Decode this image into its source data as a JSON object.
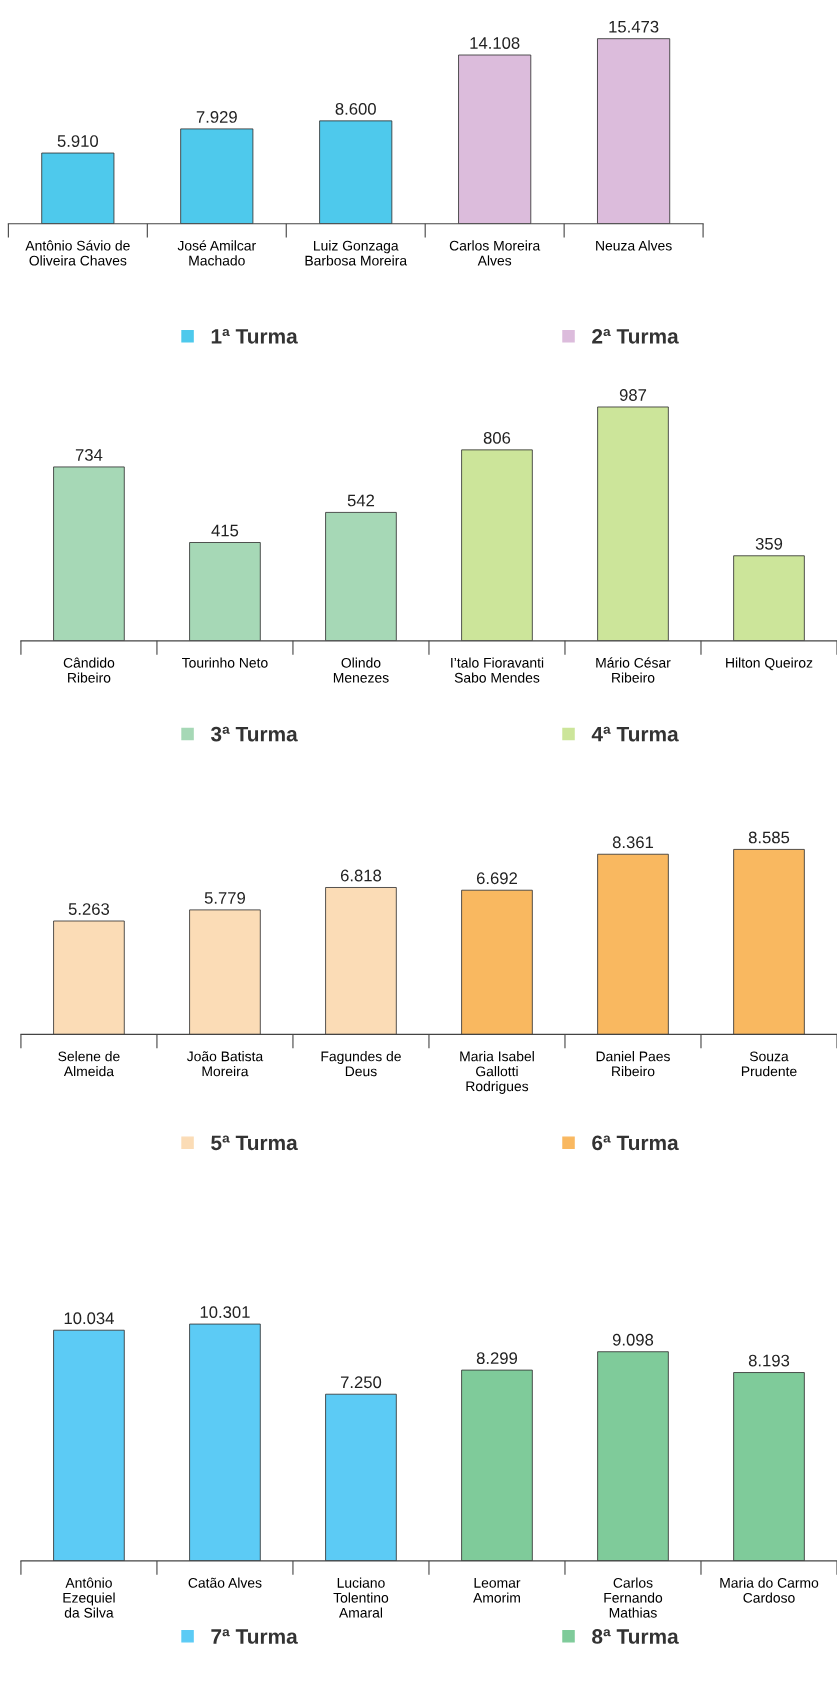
{
  "chart_data": [
    {
      "type": "bar",
      "categories": [
        "Antônio Sávio de\nOliveira Chaves",
        "José Amilcar\nMachado",
        "Luiz Gonzaga\nBarbosa Moreira",
        "Carlos Moreira\nAlves",
        "Neuza Alves"
      ],
      "legend": "bottom",
      "series": [
        {
          "name": "1ª Turma",
          "color": "#4ec9ec",
          "values": [
            5910,
            7929,
            8600,
            null,
            null
          ],
          "value_labels": [
            "5.910",
            "7.929",
            "8.600",
            null,
            null
          ]
        },
        {
          "name": "2ª Turma",
          "color": "#dcbcdc",
          "values": [
            null,
            null,
            null,
            14108,
            15473
          ],
          "value_labels": [
            null,
            null,
            null,
            "14.108",
            "15.473"
          ]
        }
      ]
    },
    {
      "type": "bar",
      "categories": [
        "Cândido\nRibeiro",
        "Tourinho Neto",
        "Olindo\nMenezes",
        "I’talo Fioravanti\nSabo Mendes",
        "Mário César\nRibeiro",
        "Hilton Queiroz"
      ],
      "legend": "bottom",
      "series": [
        {
          "name": "3ª Turma",
          "color": "#a6d8b6",
          "values": [
            734,
            415,
            542,
            null,
            null,
            null
          ],
          "value_labels": [
            "734",
            "415",
            "542",
            null,
            null,
            null
          ]
        },
        {
          "name": "4ª Turma",
          "color": "#cce59a",
          "values": [
            null,
            null,
            null,
            806,
            987,
            359
          ],
          "value_labels": [
            null,
            null,
            null,
            "806",
            "987",
            "359"
          ]
        }
      ]
    },
    {
      "type": "bar",
      "categories": [
        "Selene de\nAlmeida",
        "João Batista\nMoreira",
        "Fagundes de\nDeus",
        "Maria Isabel\nGallotti\nRodrigues",
        "Daniel Paes\nRibeiro",
        "Souza\nPrudente"
      ],
      "legend": "bottom",
      "series": [
        {
          "name": "5ª Turma",
          "color": "#fbdcb6",
          "values": [
            5263,
            5779,
            6818,
            null,
            null,
            null
          ],
          "value_labels": [
            "5.263",
            "5.779",
            "6.818",
            null,
            null,
            null
          ]
        },
        {
          "name": "6ª Turma",
          "color": "#f9b860",
          "values": [
            null,
            null,
            null,
            6692,
            8361,
            8585
          ],
          "value_labels": [
            null,
            null,
            null,
            "6.692",
            "8.361",
            "8.585"
          ]
        }
      ]
    },
    {
      "type": "bar",
      "categories": [
        "Antônio\nEzequiel\nda Silva",
        "Catão Alves",
        "Luciano\nTolentino\nAmaral",
        "Leomar\nAmorim",
        "Carlos\nFernando\nMathias",
        "Maria do Carmo\nCardoso"
      ],
      "legend": "bottom",
      "series": [
        {
          "name": "7ª Turma",
          "color": "#5ccbf5",
          "values": [
            10034,
            10301,
            7250,
            null,
            null,
            null
          ],
          "value_labels": [
            "10.034",
            "10.301",
            "7.250",
            null,
            null,
            null
          ]
        },
        {
          "name": "8ª Turma",
          "color": "#7fcb9a",
          "values": [
            null,
            null,
            null,
            8299,
            9098,
            8193
          ],
          "value_labels": [
            null,
            null,
            null,
            "8.299",
            "9.098",
            "8.193"
          ]
        }
      ]
    }
  ]
}
